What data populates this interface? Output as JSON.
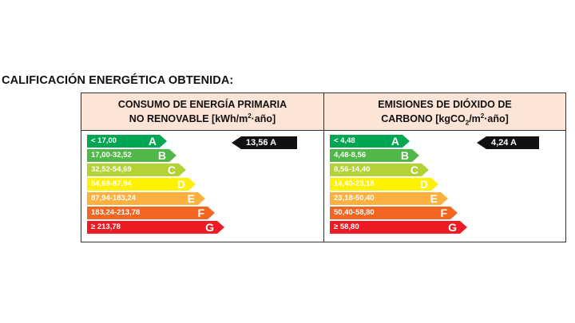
{
  "title": "CALIFICACIÓN ENERGÉTICA OBTENIDA:",
  "panels": [
    {
      "header_line1": "CONSUMO DE ENERGÍA PRIMARIA",
      "header_line2_pre": "NO RENOVABLE [kWh/m",
      "header_sup": "2",
      "header_line2_post": "·año]",
      "result": "13,56 A",
      "bands": [
        {
          "range": "< 17,00",
          "letter": "A",
          "color": "#00a651"
        },
        {
          "range": "17,00-32,52",
          "letter": "B",
          "color": "#50b848"
        },
        {
          "range": "32,52-54,69",
          "letter": "C",
          "color": "#b2d235"
        },
        {
          "range": "54,69-87,94",
          "letter": "D",
          "color": "#fff200"
        },
        {
          "range": "87,94-183,24",
          "letter": "E",
          "color": "#fcb040"
        },
        {
          "range": "183,24-213,78",
          "letter": "F",
          "color": "#f26522"
        },
        {
          "range": "≥ 213,78",
          "letter": "G",
          "color": "#ed1c24"
        }
      ]
    },
    {
      "header_line1": "EMISIONES DE DIÓXIDO DE",
      "header_line2_pre": "CARBONO [kgCO",
      "header_sub": "2",
      "header_line2_mid": "/m",
      "header_sup": "2",
      "header_line2_post": "·año]",
      "result": "4,24 A",
      "bands": [
        {
          "range": "< 4,48",
          "letter": "A",
          "color": "#00a651"
        },
        {
          "range": "4,48-8,56",
          "letter": "B",
          "color": "#50b848"
        },
        {
          "range": "8,56-14,40",
          "letter": "C",
          "color": "#b2d235"
        },
        {
          "range": "14,40-23,18",
          "letter": "D",
          "color": "#fff200"
        },
        {
          "range": "23,18-50,40",
          "letter": "E",
          "color": "#fcb040"
        },
        {
          "range": "50,40-58,80",
          "letter": "F",
          "color": "#f26522"
        },
        {
          "range": "≥ 58,80",
          "letter": "G",
          "color": "#ed1c24"
        }
      ]
    }
  ]
}
